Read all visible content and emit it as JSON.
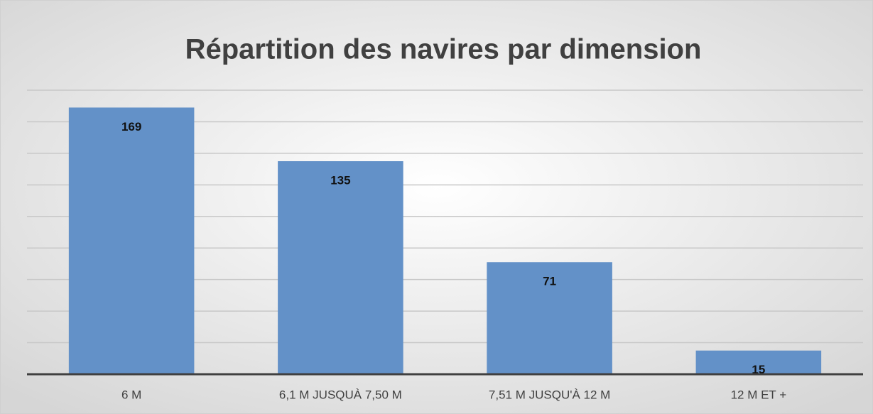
{
  "chart_data": {
    "type": "bar",
    "title": "Répartition des navires par dimension",
    "categories": [
      "6 M",
      "6,1 M JUSQUÀ 7,50 M",
      "7,51 M JUSQU'À 12 M",
      "12 M ET +"
    ],
    "values": [
      169,
      135,
      71,
      15
    ],
    "color": "#6391c8",
    "ylim": [
      0,
      180
    ],
    "yticks": [
      0,
      20,
      40,
      60,
      80,
      100,
      120,
      140,
      160,
      180
    ],
    "grid": true
  }
}
